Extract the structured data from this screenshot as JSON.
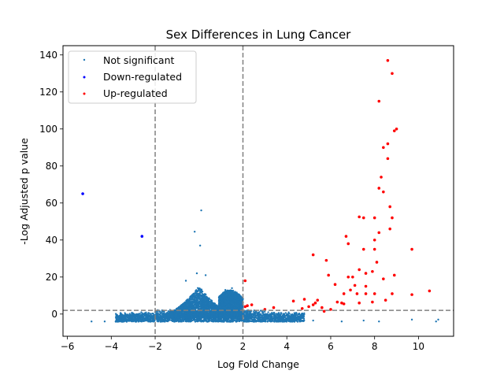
{
  "chart_data": {
    "type": "scatter",
    "title": "Sex Differences in Lung Cancer",
    "xlabel": "Log Fold Change",
    "ylabel": "-Log Adjusted p value",
    "xlim": [
      -6.2,
      11.6
    ],
    "ylim": [
      -12,
      145
    ],
    "xticks": [
      -6,
      -4,
      -2,
      0,
      2,
      4,
      6,
      8,
      10
    ],
    "yticks": [
      0,
      20,
      40,
      60,
      80,
      100,
      120,
      140
    ],
    "xtick_labels": [
      "−6",
      "−4",
      "−2",
      "0",
      "2",
      "4",
      "6",
      "8",
      "10"
    ],
    "ytick_labels": [
      "0",
      "20",
      "40",
      "60",
      "80",
      "100",
      "120",
      "140"
    ],
    "thresholds": {
      "vertical": [
        -2,
        2
      ],
      "horizontal": 2
    },
    "legend_position": "top-left",
    "legend": [
      {
        "name": "Not significant",
        "color": "#1f77b4"
      },
      {
        "name": "Down-regulated",
        "color": "#0000ff"
      },
      {
        "name": "Up-regulated",
        "color": "#ff0000"
      }
    ],
    "series": [
      {
        "name": "Not significant",
        "color": "#1f77b4",
        "points": [
          [
            0.1,
            56
          ],
          [
            -0.2,
            44.5
          ],
          [
            0.05,
            37
          ],
          [
            -0.1,
            22
          ],
          [
            0.3,
            21
          ],
          [
            -0.6,
            18
          ],
          [
            1.5,
            14
          ],
          [
            1.2,
            13
          ],
          [
            -4.9,
            -4
          ],
          [
            -4.3,
            -4
          ],
          [
            -3.8,
            -4
          ],
          [
            -3.2,
            -3.5
          ],
          [
            10.8,
            -4
          ],
          [
            10.9,
            -3
          ],
          [
            9.7,
            -3
          ],
          [
            8.2,
            -4
          ],
          [
            7.5,
            -3.5
          ],
          [
            6.5,
            -4
          ],
          [
            5.2,
            -3.5
          ],
          [
            4.4,
            -3
          ],
          [
            3.5,
            -3.5
          ]
        ],
        "bands": [
          {
            "x": [
              -3.5,
              4.5
            ],
            "y_max": 1
          },
          {
            "x": [
              -1.5,
              1.0
            ],
            "y_max": 15
          },
          {
            "x": [
              0.9,
              2.0
            ],
            "y_max": 13
          }
        ]
      },
      {
        "name": "Down-regulated",
        "color": "#0000ff",
        "points": [
          [
            -5.3,
            65
          ],
          [
            -2.6,
            42
          ]
        ]
      },
      {
        "name": "Up-regulated",
        "color": "#ff0000",
        "points": [
          [
            8.6,
            137
          ],
          [
            8.8,
            130
          ],
          [
            8.2,
            115
          ],
          [
            8.9,
            99
          ],
          [
            9.0,
            100
          ],
          [
            8.6,
            92
          ],
          [
            8.4,
            90
          ],
          [
            8.6,
            84
          ],
          [
            8.3,
            74
          ],
          [
            8.2,
            68
          ],
          [
            8.4,
            66
          ],
          [
            8.7,
            58
          ],
          [
            8.8,
            52
          ],
          [
            7.3,
            52.5
          ],
          [
            7.5,
            52
          ],
          [
            8.0,
            52
          ],
          [
            8.2,
            44
          ],
          [
            8.7,
            46
          ],
          [
            6.7,
            42
          ],
          [
            8.0,
            40
          ],
          [
            6.8,
            38
          ],
          [
            9.7,
            35
          ],
          [
            7.5,
            35
          ],
          [
            8.0,
            35
          ],
          [
            5.2,
            32
          ],
          [
            5.8,
            29
          ],
          [
            8.1,
            28
          ],
          [
            7.3,
            24
          ],
          [
            7.6,
            22
          ],
          [
            7.9,
            23
          ],
          [
            5.9,
            21
          ],
          [
            8.9,
            21
          ],
          [
            6.8,
            20
          ],
          [
            7.0,
            20
          ],
          [
            8.4,
            19
          ],
          [
            6.2,
            16
          ],
          [
            7.1,
            15.5
          ],
          [
            7.6,
            15
          ],
          [
            2.1,
            18
          ],
          [
            6.9,
            13
          ],
          [
            6.6,
            11
          ],
          [
            7.2,
            11
          ],
          [
            7.6,
            11
          ],
          [
            8.0,
            11
          ],
          [
            8.8,
            11
          ],
          [
            9.7,
            10.5
          ],
          [
            10.5,
            12.5
          ],
          [
            8.5,
            7.5
          ],
          [
            7.9,
            6.5
          ],
          [
            7.3,
            6
          ],
          [
            6.5,
            6
          ],
          [
            6.3,
            6.5
          ],
          [
            6.6,
            5.5
          ],
          [
            5.4,
            7.5
          ],
          [
            5.3,
            6
          ],
          [
            4.3,
            7
          ],
          [
            4.8,
            8
          ],
          [
            5.2,
            5
          ],
          [
            5.0,
            4
          ],
          [
            4.7,
            3
          ],
          [
            5.6,
            3.5
          ],
          [
            5.7,
            1.5
          ],
          [
            6.0,
            2.5
          ],
          [
            3.4,
            3.5
          ],
          [
            3.0,
            2.5
          ],
          [
            2.4,
            5
          ],
          [
            2.2,
            4.5
          ],
          [
            2.1,
            4
          ]
        ]
      }
    ]
  }
}
